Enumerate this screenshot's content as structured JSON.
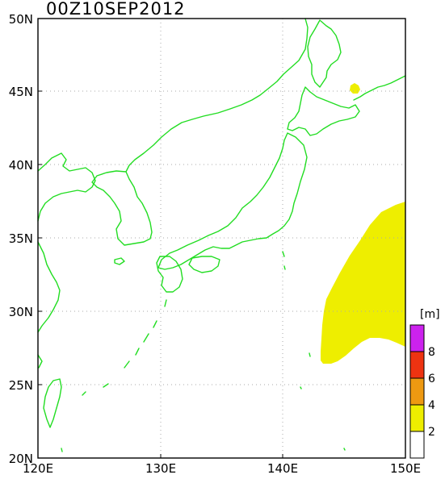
{
  "title": "00Z10SEP2012",
  "lat_labels": [
    "50N",
    "45N",
    "40N",
    "35N",
    "30N",
    "25N",
    "20N"
  ],
  "lon_labels": [
    "120E",
    "130E",
    "140E",
    "150E"
  ],
  "colorbar": {
    "unit": "[m]",
    "labels": [
      "8",
      "6",
      "4",
      "2"
    ],
    "levels": [
      {
        "min": 8,
        "color": "#cc22ee"
      },
      {
        "min": 6,
        "color": "#ee3311"
      },
      {
        "min": 4,
        "color": "#ee9911"
      },
      {
        "min": 2,
        "color": "#eeee00"
      },
      {
        "min": 0,
        "color": "#ffffff"
      }
    ]
  },
  "colors": {
    "coastline": "#22dd22",
    "wave_field": "#eeee00"
  }
}
